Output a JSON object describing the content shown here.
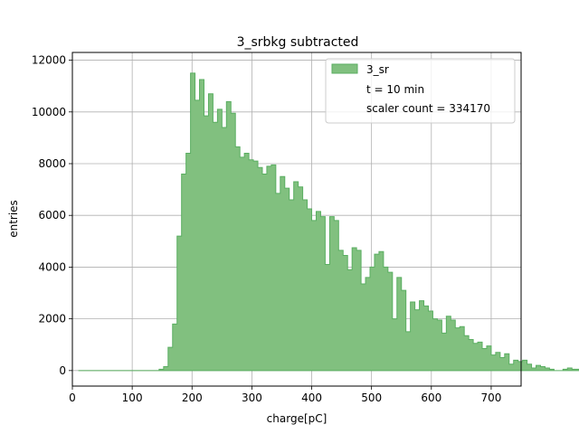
{
  "chart_data": {
    "type": "histogram",
    "title": "3_srbkg subtracted",
    "xlabel": "charge[pC]",
    "ylabel": "entries",
    "xlim": [
      0,
      750
    ],
    "ylim": [
      -600,
      12300
    ],
    "xticks": [
      0,
      100,
      200,
      300,
      400,
      500,
      600,
      700
    ],
    "yticks": [
      0,
      2000,
      4000,
      6000,
      8000,
      10000,
      12000
    ],
    "grid": true,
    "legend_position": "top-right",
    "fill_color": "#81c07f",
    "edge_color": "#5aae61",
    "legend": {
      "series_label": "3_sr",
      "text_lines": [
        "t = 10 min",
        "scaler count = 334170"
      ]
    },
    "bin_edges_start": 10,
    "bin_width": 7.5,
    "values": [
      0,
      0,
      0,
      0,
      0,
      0,
      0,
      0,
      0,
      0,
      0,
      0,
      0,
      0,
      0,
      0,
      0,
      0,
      50,
      150,
      900,
      1800,
      5200,
      7600,
      8400,
      11500,
      10450,
      11250,
      9850,
      10700,
      9600,
      10100,
      9400,
      10400,
      9950,
      8650,
      8250,
      8400,
      8150,
      8100,
      7850,
      7600,
      7900,
      7950,
      6850,
      7500,
      7050,
      6600,
      7300,
      7100,
      6600,
      6250,
      5800,
      6150,
      5950,
      4100,
      5950,
      5800,
      4650,
      4450,
      3900,
      4750,
      4650,
      3350,
      3600,
      4000,
      4500,
      4600,
      4000,
      3800,
      2000,
      3600,
      3100,
      1500,
      2650,
      2350,
      2700,
      2500,
      2300,
      2000,
      1950,
      1450,
      2100,
      1950,
      1650,
      1700,
      1350,
      1200,
      1050,
      1100,
      850,
      950,
      600,
      700,
      500,
      650,
      250,
      400,
      350,
      400,
      250,
      100,
      200,
      150,
      100,
      50,
      0,
      0,
      50,
      100,
      50,
      50,
      0,
      50,
      0,
      0,
      0,
      0,
      0,
      0,
      0,
      0,
      0,
      0,
      0,
      0,
      0,
      0,
      0,
      0,
      0,
      0
    ]
  }
}
